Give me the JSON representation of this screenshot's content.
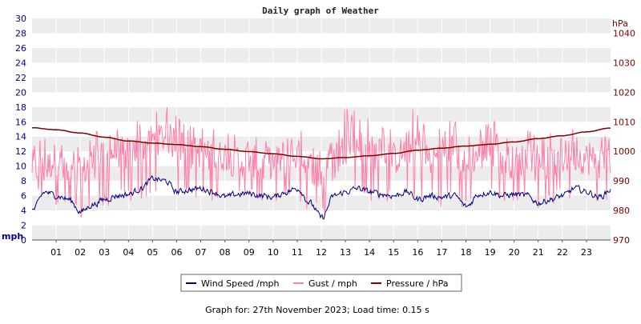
{
  "page": {
    "footer": "Graph for: 27th November 2023; Load time: 0.15 s"
  },
  "chart_data": {
    "type": "line",
    "title": "Daily graph of Weather",
    "left_axis": {
      "unit_label": "mph",
      "range": [
        0,
        30
      ],
      "ticks": [
        0,
        2,
        4,
        6,
        8,
        10,
        12,
        14,
        16,
        18,
        20,
        22,
        24,
        26,
        28,
        30
      ],
      "color": "#000080"
    },
    "right_axis": {
      "unit_label": "hPa",
      "range": [
        970,
        1045
      ],
      "ticks": [
        970,
        980,
        990,
        1000,
        1010,
        1020,
        1030,
        1040
      ],
      "color": "#800000"
    },
    "x_axis": {
      "range_hours": [
        0,
        24
      ],
      "tick_labels": [
        "01",
        "02",
        "03",
        "04",
        "05",
        "06",
        "07",
        "08",
        "09",
        "10",
        "11",
        "12",
        "13",
        "14",
        "15",
        "16",
        "17",
        "18",
        "19",
        "20",
        "21",
        "22",
        "23"
      ]
    },
    "grid": true,
    "legend_placement": "bottom-center",
    "series": [
      {
        "name": "Wind Speed /mph",
        "axis": "left",
        "color": "#000080",
        "x": [
          0,
          0.5,
          1,
          1.5,
          2,
          2.5,
          3,
          3.5,
          4,
          4.5,
          5,
          5.5,
          6,
          6.5,
          7,
          7.5,
          8,
          8.5,
          9,
          9.5,
          10,
          10.5,
          11,
          11.5,
          12,
          12.5,
          13,
          13.5,
          14,
          14.5,
          15,
          15.5,
          16,
          16.5,
          17,
          17.5,
          18,
          18.5,
          19,
          19.5,
          20,
          20.5,
          21,
          21.5,
          22,
          22.5,
          23,
          23.5,
          24
        ],
        "values": [
          4.0,
          6.5,
          6.0,
          5.5,
          3.8,
          4.8,
          5.5,
          6.0,
          6.2,
          7.0,
          8.3,
          8.0,
          6.5,
          6.8,
          7.0,
          6.5,
          5.8,
          6.2,
          6.3,
          6.0,
          5.8,
          6.5,
          7.0,
          5.0,
          3.0,
          6.0,
          6.5,
          7.0,
          6.5,
          6.2,
          6.0,
          6.5,
          5.5,
          6.0,
          5.8,
          6.0,
          4.5,
          6.2,
          6.5,
          6.0,
          6.2,
          6.0,
          5.0,
          5.5,
          6.0,
          7.0,
          6.5,
          5.8,
          6.8
        ]
      },
      {
        "name": "Gust / mph",
        "axis": "left",
        "color": "#ff7fa8",
        "x": [
          0,
          0.5,
          1,
          1.5,
          2,
          2.5,
          3,
          3.5,
          4,
          4.5,
          5,
          5.5,
          6,
          6.5,
          7,
          7.5,
          8,
          8.5,
          9,
          9.5,
          10,
          10.5,
          11,
          11.5,
          12,
          12.5,
          13,
          13.5,
          14,
          14.5,
          15,
          15.5,
          16,
          16.5,
          17,
          17.5,
          18,
          18.5,
          19,
          19.5,
          20,
          20.5,
          21,
          21.5,
          22,
          22.5,
          23,
          23.5,
          24
        ],
        "values": [
          10.0,
          9.5,
          11.0,
          8.5,
          9.0,
          10.5,
          11.0,
          12.0,
          11.5,
          12.5,
          13.5,
          14.0,
          13.0,
          11.5,
          12.0,
          11.0,
          11.5,
          10.5,
          11.0,
          10.0,
          10.5,
          11.0,
          11.5,
          10.0,
          8.5,
          10.0,
          12.5,
          13.0,
          12.0,
          11.5,
          11.0,
          12.0,
          13.0,
          11.0,
          11.5,
          12.0,
          10.0,
          11.5,
          12.0,
          11.0,
          10.5,
          11.0,
          10.0,
          10.5,
          11.0,
          11.5,
          11.0,
          10.5,
          11.0
        ],
        "min": [
          5.5,
          5.0,
          4.5,
          4.0,
          3.0,
          3.8,
          4.2,
          4.8,
          5.0,
          5.5,
          6.0,
          6.5,
          5.5,
          5.8,
          5.5,
          5.2,
          4.8,
          5.0,
          5.2,
          4.8,
          4.5,
          5.0,
          5.2,
          4.0,
          3.0,
          4.5,
          5.0,
          5.5,
          5.0,
          5.2,
          5.0,
          5.0,
          4.5,
          4.8,
          4.5,
          4.8,
          3.8,
          4.8,
          5.0,
          4.8,
          4.5,
          4.8,
          4.2,
          4.5,
          5.0,
          5.5,
          5.0,
          4.8,
          5.0
        ],
        "max": [
          15.0,
          14.5,
          16.0,
          12.0,
          13.5,
          15.0,
          15.0,
          16.0,
          15.5,
          16.5,
          17.5,
          18.5,
          17.0,
          15.5,
          16.5,
          15.0,
          15.5,
          14.5,
          15.0,
          14.0,
          14.5,
          15.0,
          15.5,
          14.0,
          12.5,
          14.0,
          18.0,
          17.5,
          16.5,
          15.5,
          15.0,
          16.5,
          18.5,
          15.5,
          16.0,
          16.5,
          14.0,
          16.0,
          16.5,
          15.5,
          14.5,
          15.0,
          14.0,
          14.5,
          15.0,
          15.5,
          15.0,
          14.5,
          15.0
        ]
      },
      {
        "name": "Pressure / hPa",
        "axis": "right",
        "color": "#800000",
        "x": [
          0,
          1,
          2,
          3,
          4,
          5,
          6,
          7,
          8,
          9,
          10,
          11,
          12,
          13,
          14,
          15,
          16,
          17,
          18,
          19,
          20,
          21,
          22,
          23,
          24
        ],
        "values": [
          1008.0,
          1007.3,
          1006.2,
          1004.8,
          1003.5,
          1002.8,
          1002.3,
          1001.6,
          1000.7,
          999.9,
          999.2,
          998.3,
          997.5,
          997.9,
          998.5,
          999.3,
          1000.4,
          1001.1,
          1001.8,
          1002.4,
          1003.2,
          1004.3,
          1005.3,
          1006.6,
          1007.9
        ]
      }
    ]
  }
}
